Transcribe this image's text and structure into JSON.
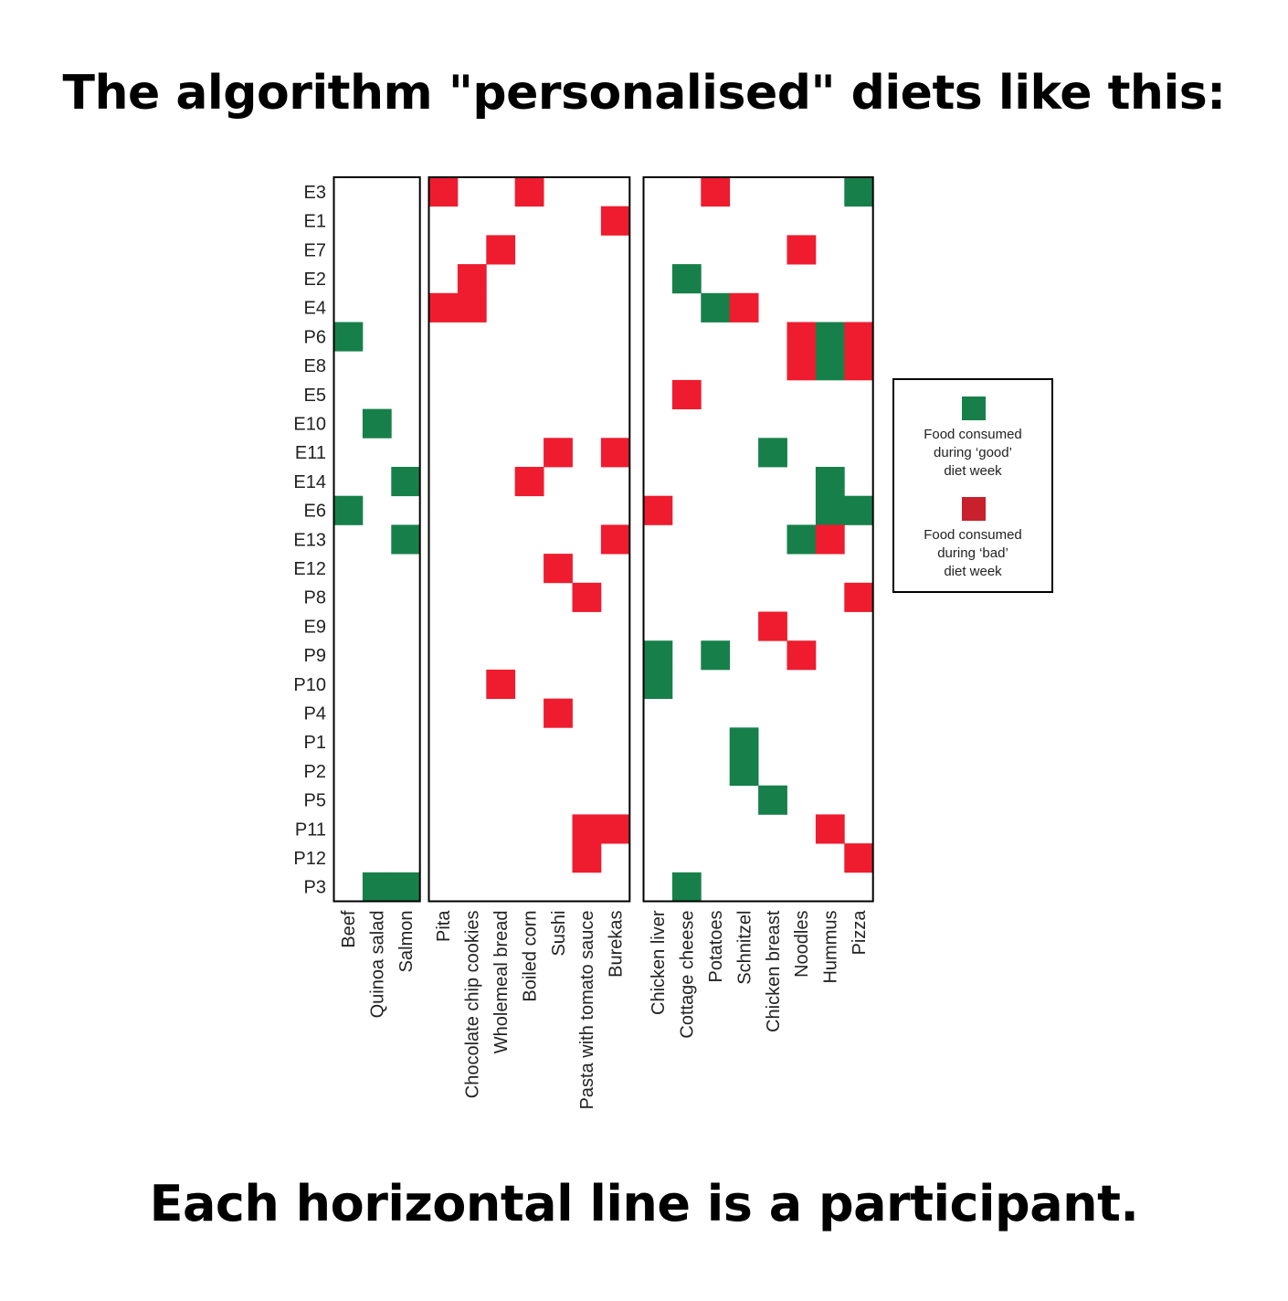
{
  "title": "The algorithm \"personalised\" diets like this:",
  "caption": "Each horizontal line is a participant.",
  "colors": {
    "good": "#17804a",
    "bad": "#ee1c2e",
    "bad_legend": "#c8202c",
    "frame": "#000000"
  },
  "legend": {
    "good": {
      "line1": "Food consumed",
      "line2": "during ‘good’",
      "line3": "diet week"
    },
    "bad": {
      "line1": "Food consumed",
      "line2": "during ‘bad’",
      "line3": "diet week"
    }
  },
  "chart_data": {
    "type": "heatmap",
    "participants": [
      "E3",
      "E1",
      "E7",
      "E2",
      "E4",
      "P6",
      "E8",
      "E5",
      "E10",
      "E11",
      "E14",
      "E6",
      "E13",
      "E12",
      "P8",
      "E9",
      "P9",
      "P10",
      "P4",
      "P1",
      "P2",
      "P5",
      "P11",
      "P12",
      "P3"
    ],
    "food_groups": [
      [
        "Beef",
        "Quinoa salad",
        "Salmon"
      ],
      [
        "Pita",
        "Chocolate chip cookies",
        "Wholemeal bread",
        "Boiled corn",
        "Sushi",
        "Pasta with tomato sauce",
        "Burekas"
      ],
      [
        "Chicken liver",
        "Cottage cheese",
        "Potatoes",
        "Schnitzel",
        "Chicken breast",
        "Noodles",
        "Hummus",
        "Pizza"
      ]
    ],
    "value_legend": {
      "1": "Food consumed during ‘good’ diet week",
      "-1": "Food consumed during ‘bad’ diet week"
    },
    "cells": [
      {
        "participant": "E3",
        "food": "Pita",
        "week": "bad"
      },
      {
        "participant": "E3",
        "food": "Boiled corn",
        "week": "bad"
      },
      {
        "participant": "E3",
        "food": "Potatoes",
        "week": "bad"
      },
      {
        "participant": "E3",
        "food": "Pizza",
        "week": "good"
      },
      {
        "participant": "E1",
        "food": "Burekas",
        "week": "bad"
      },
      {
        "participant": "E7",
        "food": "Wholemeal bread",
        "week": "bad"
      },
      {
        "participant": "E7",
        "food": "Noodles",
        "week": "bad"
      },
      {
        "participant": "E2",
        "food": "Chocolate chip cookies",
        "week": "bad"
      },
      {
        "participant": "E2",
        "food": "Cottage cheese",
        "week": "good"
      },
      {
        "participant": "E4",
        "food": "Pita",
        "week": "bad"
      },
      {
        "participant": "E4",
        "food": "Chocolate chip cookies",
        "week": "bad"
      },
      {
        "participant": "E4",
        "food": "Potatoes",
        "week": "good"
      },
      {
        "participant": "E4",
        "food": "Schnitzel",
        "week": "bad"
      },
      {
        "participant": "P6",
        "food": "Beef",
        "week": "good"
      },
      {
        "participant": "P6",
        "food": "Noodles",
        "week": "bad"
      },
      {
        "participant": "P6",
        "food": "Hummus",
        "week": "good"
      },
      {
        "participant": "P6",
        "food": "Pizza",
        "week": "bad"
      },
      {
        "participant": "E8",
        "food": "Noodles",
        "week": "bad"
      },
      {
        "participant": "E8",
        "food": "Hummus",
        "week": "good"
      },
      {
        "participant": "E8",
        "food": "Pizza",
        "week": "bad"
      },
      {
        "participant": "E5",
        "food": "Cottage cheese",
        "week": "bad"
      },
      {
        "participant": "E10",
        "food": "Quinoa salad",
        "week": "good"
      },
      {
        "participant": "E11",
        "food": "Sushi",
        "week": "bad"
      },
      {
        "participant": "E11",
        "food": "Burekas",
        "week": "bad"
      },
      {
        "participant": "E11",
        "food": "Chicken breast",
        "week": "good"
      },
      {
        "participant": "E14",
        "food": "Salmon",
        "week": "good"
      },
      {
        "participant": "E14",
        "food": "Boiled corn",
        "week": "bad"
      },
      {
        "participant": "E14",
        "food": "Hummus",
        "week": "good"
      },
      {
        "participant": "E6",
        "food": "Beef",
        "week": "good"
      },
      {
        "participant": "E6",
        "food": "Chicken liver",
        "week": "bad"
      },
      {
        "participant": "E6",
        "food": "Hummus",
        "week": "good"
      },
      {
        "participant": "E6",
        "food": "Pizza",
        "week": "good"
      },
      {
        "participant": "E13",
        "food": "Salmon",
        "week": "good"
      },
      {
        "participant": "E13",
        "food": "Burekas",
        "week": "bad"
      },
      {
        "participant": "E13",
        "food": "Noodles",
        "week": "good"
      },
      {
        "participant": "E13",
        "food": "Hummus",
        "week": "bad"
      },
      {
        "participant": "E12",
        "food": "Sushi",
        "week": "bad"
      },
      {
        "participant": "P8",
        "food": "Pasta with tomato sauce",
        "week": "bad"
      },
      {
        "participant": "P8",
        "food": "Pizza",
        "week": "bad"
      },
      {
        "participant": "E9",
        "food": "Chicken breast",
        "week": "bad"
      },
      {
        "participant": "P9",
        "food": "Chicken liver",
        "week": "good"
      },
      {
        "participant": "P9",
        "food": "Potatoes",
        "week": "good"
      },
      {
        "participant": "P9",
        "food": "Noodles",
        "week": "bad"
      },
      {
        "participant": "P10",
        "food": "Wholemeal bread",
        "week": "bad"
      },
      {
        "participant": "P10",
        "food": "Chicken liver",
        "week": "good"
      },
      {
        "participant": "P4",
        "food": "Sushi",
        "week": "bad"
      },
      {
        "participant": "P1",
        "food": "Schnitzel",
        "week": "good"
      },
      {
        "participant": "P2",
        "food": "Schnitzel",
        "week": "good"
      },
      {
        "participant": "P5",
        "food": "Chicken breast",
        "week": "good"
      },
      {
        "participant": "P11",
        "food": "Pasta with tomato sauce",
        "week": "bad"
      },
      {
        "participant": "P11",
        "food": "Burekas",
        "week": "bad"
      },
      {
        "participant": "P11",
        "food": "Hummus",
        "week": "bad"
      },
      {
        "participant": "P12",
        "food": "Pasta with tomato sauce",
        "week": "bad"
      },
      {
        "participant": "P12",
        "food": "Pizza",
        "week": "bad"
      },
      {
        "participant": "P3",
        "food": "Quinoa salad",
        "week": "good"
      },
      {
        "participant": "P3",
        "food": "Salmon",
        "week": "good"
      },
      {
        "participant": "P3",
        "food": "Cottage cheese",
        "week": "good"
      }
    ]
  }
}
